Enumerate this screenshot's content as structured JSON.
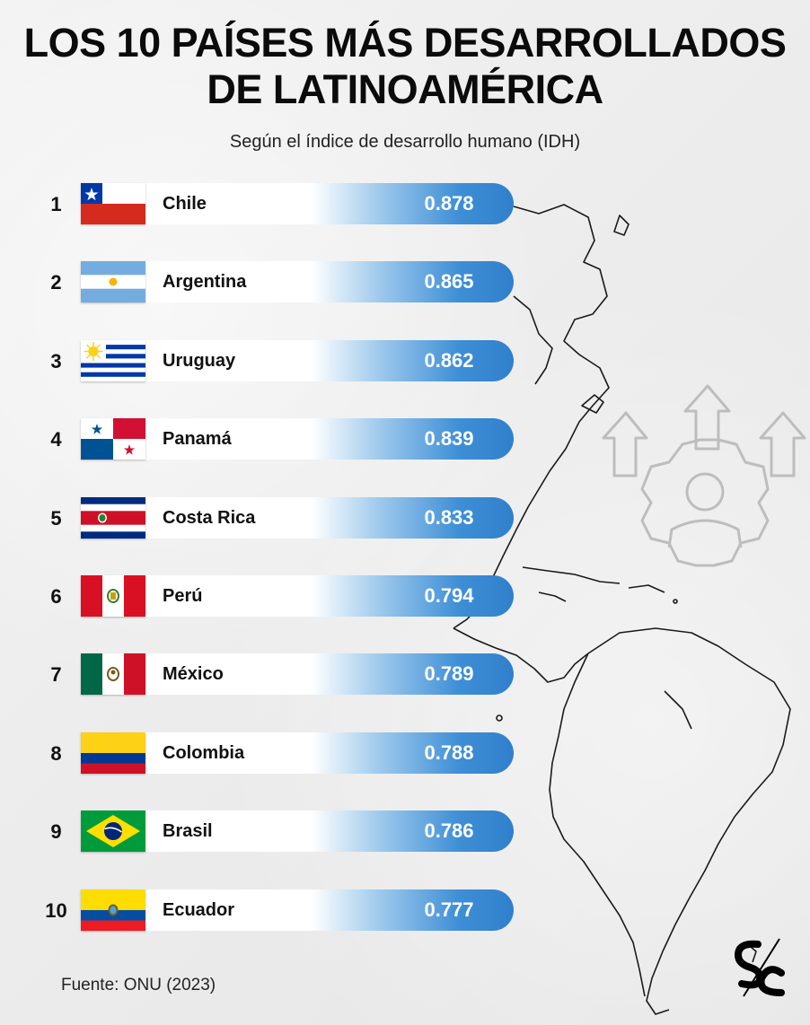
{
  "header": {
    "title_line1": "LOS 10 PAÍSES MÁS DESARROLLADOS",
    "title_line2": "DE LATINOAMÉRICA",
    "subtitle": "Según el índice de desarrollo humano (IDH)"
  },
  "footer": {
    "source": "Fuente: ONU (2023)",
    "logo_text": "SC"
  },
  "chart_data": {
    "type": "bar",
    "title": "LOS 10 PAÍSES MÁS DESARROLLADOS DE LATINOAMÉRICA",
    "subtitle": "Según el índice de desarrollo humano (IDH)",
    "categories": [
      "Chile",
      "Argentina",
      "Uruguay",
      "Panamá",
      "Costa Rica",
      "Perú",
      "México",
      "Colombia",
      "Brasil",
      "Ecuador"
    ],
    "ranks": [
      "1",
      "2",
      "3",
      "4",
      "5",
      "6",
      "7",
      "8",
      "9",
      "10"
    ],
    "values": [
      0.878,
      0.865,
      0.862,
      0.839,
      0.833,
      0.794,
      0.789,
      0.788,
      0.786,
      0.777
    ],
    "value_labels": [
      "0.878",
      "0.865",
      "0.862",
      "0.839",
      "0.833",
      "0.794",
      "0.789",
      "0.788",
      "0.786",
      "0.777"
    ],
    "orientation": "horizontal",
    "bar_color": "#3f8fd6",
    "flag_icons": [
      "chile-flag-icon",
      "argentina-flag-icon",
      "uruguay-flag-icon",
      "panama-flag-icon",
      "costa-rica-flag-icon",
      "peru-flag-icon",
      "mexico-flag-icon",
      "colombia-flag-icon",
      "brazil-flag-icon",
      "ecuador-flag-icon"
    ]
  }
}
